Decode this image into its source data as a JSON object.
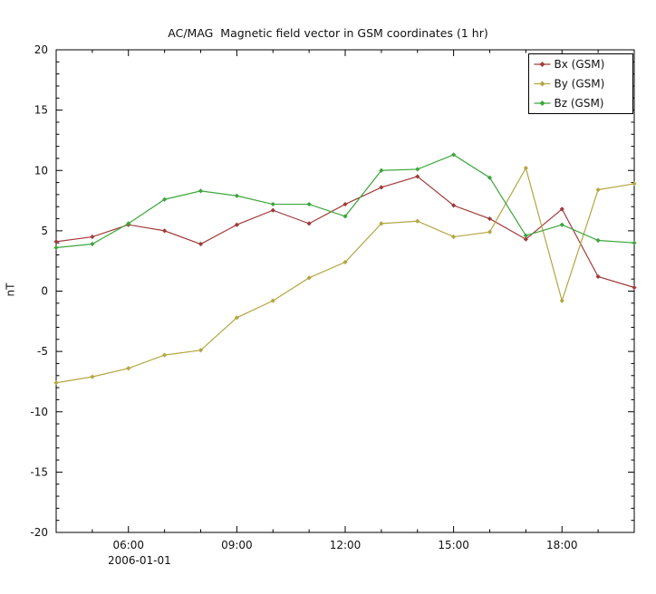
{
  "chart_data": {
    "type": "line",
    "title": "AC/MAG  Magnetic field vector in GSM coordinates (1 hr)",
    "ylabel": "nT",
    "x_date_label": "2006-01-01",
    "xlim_hours": [
      4,
      20
    ],
    "ylim": [
      -20,
      20
    ],
    "yticks": [
      -20,
      -15,
      -10,
      -5,
      0,
      5,
      10,
      15,
      20
    ],
    "xticks": [
      {
        "hour": 6,
        "label": "06:00"
      },
      {
        "hour": 9,
        "label": "09:00"
      },
      {
        "hour": 12,
        "label": "12:00"
      },
      {
        "hour": 15,
        "label": "15:00"
      },
      {
        "hour": 18,
        "label": "18:00"
      }
    ],
    "x_hours": [
      4,
      5,
      6,
      7,
      8,
      9,
      10,
      11,
      12,
      13,
      14,
      15,
      16,
      17,
      18,
      19,
      20
    ],
    "series": [
      {
        "name": "Bx (GSM)",
        "color": "#a23b3b",
        "values": [
          4.1,
          4.5,
          5.5,
          5.0,
          3.9,
          5.5,
          6.7,
          5.6,
          7.2,
          8.6,
          9.5,
          7.1,
          6.0,
          4.3,
          6.8,
          1.2,
          0.3
        ]
      },
      {
        "name": "By (GSM)",
        "color": "#b3a642",
        "values": [
          -7.6,
          -7.1,
          -6.4,
          -5.3,
          -4.9,
          -2.2,
          -0.8,
          1.1,
          2.4,
          5.6,
          5.8,
          4.5,
          4.9,
          10.2,
          -0.8,
          8.4,
          8.9
        ]
      },
      {
        "name": "Bz (GSM)",
        "color": "#3ca63c",
        "values": [
          3.6,
          3.9,
          5.6,
          7.6,
          8.3,
          7.9,
          7.2,
          7.2,
          6.2,
          10.0,
          10.1,
          11.3,
          9.4,
          4.6,
          5.5,
          4.2,
          4.0
        ]
      }
    ],
    "legend": {
      "position": "top-right"
    },
    "grid": "off",
    "axis_color": "#000000",
    "background_color": "#ffffff"
  }
}
